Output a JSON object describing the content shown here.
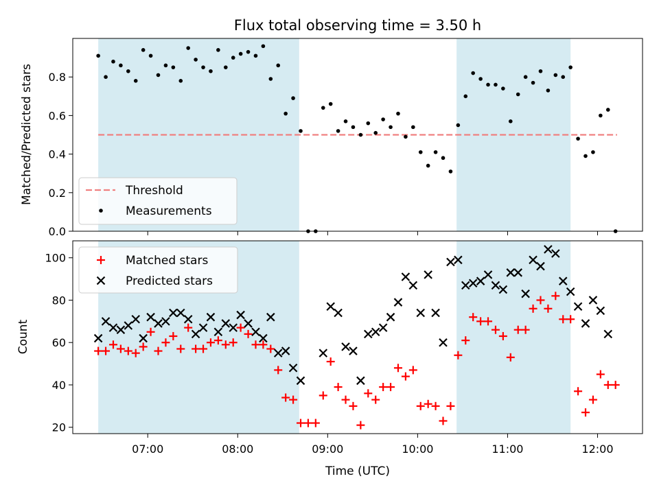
{
  "title": "Flux total observing time = 3.50 h",
  "colors": {
    "shade": "#add8e6",
    "threshold": "#f08080",
    "measurement": "#000000",
    "matched": "#ff0000",
    "predicted": "#000000"
  },
  "chart_data": [
    {
      "type": "scatter",
      "panel": "top",
      "ylabel": "Matched/Predicted stars",
      "ylim": [
        0,
        1.0
      ],
      "yticks": [
        0.0,
        0.2,
        0.4,
        0.6,
        0.8
      ],
      "ytick_labels": [
        "0.0",
        "0.2",
        "0.4",
        "0.6",
        "0.8"
      ],
      "xlim": [
        "06:10",
        "12:30"
      ],
      "shaded_spans": [
        [
          "06:27",
          "08:41"
        ],
        [
          "10:26",
          "11:42"
        ]
      ],
      "legend_position": "lower-left",
      "legend": [
        {
          "label": "Threshold",
          "kind": "dashed-line"
        },
        {
          "label": "Measurements",
          "kind": "dot"
        }
      ],
      "threshold": {
        "name": "Threshold",
        "value": 0.5,
        "x_range": [
          "06:27",
          "12:13"
        ]
      },
      "series": [
        {
          "name": "Measurements",
          "x": [
            "06:27",
            "06:32",
            "06:37",
            "06:42",
            "06:47",
            "06:52",
            "06:57",
            "07:02",
            "07:07",
            "07:12",
            "07:17",
            "07:22",
            "07:27",
            "07:32",
            "07:37",
            "07:42",
            "07:47",
            "07:52",
            "07:57",
            "08:02",
            "08:07",
            "08:12",
            "08:17",
            "08:22",
            "08:27",
            "08:32",
            "08:37",
            "08:42",
            "08:47",
            "08:52",
            "08:57",
            "09:02",
            "09:07",
            "09:12",
            "09:17",
            "09:22",
            "09:27",
            "09:32",
            "09:37",
            "09:42",
            "09:47",
            "09:52",
            "09:57",
            "10:02",
            "10:07",
            "10:12",
            "10:17",
            "10:22",
            "10:27",
            "10:32",
            "10:37",
            "10:42",
            "10:47",
            "10:52",
            "10:57",
            "11:02",
            "11:07",
            "11:12",
            "11:17",
            "11:22",
            "11:27",
            "11:32",
            "11:37",
            "11:42",
            "11:47",
            "11:52",
            "11:57",
            "12:02",
            "12:07",
            "12:12"
          ],
          "y": [
            0.91,
            0.8,
            0.88,
            0.86,
            0.83,
            0.78,
            0.94,
            0.91,
            0.81,
            0.86,
            0.85,
            0.78,
            0.95,
            0.89,
            0.85,
            0.83,
            0.94,
            0.85,
            0.9,
            0.92,
            0.93,
            0.91,
            0.96,
            0.79,
            0.86,
            0.61,
            0.69,
            0.52,
            0.0,
            0.0,
            0.64,
            0.66,
            0.52,
            0.57,
            0.54,
            0.5,
            0.56,
            0.51,
            0.58,
            0.54,
            0.61,
            0.49,
            0.54,
            0.41,
            0.34,
            0.41,
            0.38,
            0.31,
            0.55,
            0.7,
            0.82,
            0.79,
            0.76,
            0.76,
            0.74,
            0.57,
            0.71,
            0.8,
            0.77,
            0.83,
            0.73,
            0.81,
            0.8,
            0.85,
            0.48,
            0.39,
            0.41,
            0.6,
            0.63,
            0.0
          ]
        }
      ]
    },
    {
      "type": "scatter",
      "panel": "bottom",
      "xlabel": "Time (UTC)",
      "ylabel": "Count",
      "ylim": [
        17,
        108
      ],
      "yticks": [
        20,
        40,
        60,
        80,
        100
      ],
      "ytick_labels": [
        "20",
        "40",
        "60",
        "80",
        "100"
      ],
      "xlim": [
        "06:10",
        "12:30"
      ],
      "xticks": [
        "07:00",
        "08:00",
        "09:00",
        "10:00",
        "11:00",
        "12:00"
      ],
      "xtick_labels": [
        "07:00",
        "08:00",
        "09:00",
        "10:00",
        "11:00",
        "12:00"
      ],
      "shaded_spans": [
        [
          "06:27",
          "08:41"
        ],
        [
          "10:26",
          "11:42"
        ]
      ],
      "legend_position": "upper-left",
      "legend": [
        {
          "label": "Matched stars",
          "kind": "plus"
        },
        {
          "label": "Predicted stars",
          "kind": "cross"
        }
      ],
      "series": [
        {
          "name": "Matched stars",
          "x": [
            "06:27",
            "06:32",
            "06:37",
            "06:42",
            "06:47",
            "06:52",
            "06:57",
            "07:02",
            "07:07",
            "07:12",
            "07:17",
            "07:22",
            "07:27",
            "07:32",
            "07:37",
            "07:42",
            "07:47",
            "07:52",
            "07:57",
            "08:02",
            "08:07",
            "08:12",
            "08:17",
            "08:22",
            "08:27",
            "08:32",
            "08:37",
            "08:42",
            "08:47",
            "08:52",
            "08:57",
            "09:02",
            "09:07",
            "09:12",
            "09:17",
            "09:22",
            "09:27",
            "09:32",
            "09:37",
            "09:42",
            "09:47",
            "09:52",
            "09:57",
            "10:02",
            "10:07",
            "10:12",
            "10:17",
            "10:22",
            "10:27",
            "10:32",
            "10:37",
            "10:42",
            "10:47",
            "10:52",
            "10:57",
            "11:02",
            "11:07",
            "11:12",
            "11:17",
            "11:22",
            "11:27",
            "11:32",
            "11:37",
            "11:42",
            "11:47",
            "11:52",
            "11:57",
            "12:02",
            "12:07",
            "12:12"
          ],
          "y": [
            56,
            56,
            59,
            57,
            56,
            55,
            58,
            65,
            56,
            60,
            63,
            57,
            67,
            57,
            57,
            60,
            61,
            59,
            60,
            67,
            64,
            59,
            59,
            57,
            47,
            34,
            33,
            22,
            22,
            22,
            35,
            51,
            39,
            33,
            30,
            21,
            36,
            33,
            39,
            39,
            48,
            44,
            47,
            30,
            31,
            30,
            23,
            30,
            54,
            61,
            72,
            70,
            70,
            66,
            63,
            53,
            66,
            66,
            76,
            80,
            76,
            82,
            71,
            71,
            37,
            27,
            33,
            45,
            40,
            40
          ]
        },
        {
          "name": "Predicted stars",
          "x": [
            "06:27",
            "06:32",
            "06:37",
            "06:42",
            "06:47",
            "06:52",
            "06:57",
            "07:02",
            "07:07",
            "07:12",
            "07:17",
            "07:22",
            "07:27",
            "07:32",
            "07:37",
            "07:42",
            "07:47",
            "07:52",
            "07:57",
            "08:02",
            "08:07",
            "08:12",
            "08:17",
            "08:22",
            "08:27",
            "08:32",
            "08:37",
            "08:42",
            "08:57",
            "09:02",
            "09:07",
            "09:12",
            "09:17",
            "09:22",
            "09:27",
            "09:32",
            "09:37",
            "09:42",
            "09:47",
            "09:52",
            "09:57",
            "10:02",
            "10:07",
            "10:12",
            "10:17",
            "10:22",
            "10:27",
            "10:32",
            "10:37",
            "10:42",
            "10:47",
            "10:52",
            "10:57",
            "11:02",
            "11:07",
            "11:12",
            "11:17",
            "11:22",
            "11:27",
            "11:32",
            "11:37",
            "11:42",
            "11:47",
            "11:52",
            "11:57",
            "12:02",
            "12:07"
          ],
          "y": [
            62,
            70,
            67,
            66,
            68,
            71,
            62,
            72,
            69,
            70,
            74,
            74,
            71,
            64,
            67,
            72,
            65,
            69,
            67,
            73,
            69,
            65,
            62,
            72,
            55,
            56,
            48,
            42,
            55,
            77,
            74,
            58,
            56,
            42,
            64,
            65,
            67,
            72,
            79,
            91,
            87,
            74,
            92,
            74,
            60,
            98,
            99,
            87,
            88,
            89,
            92,
            87,
            85,
            93,
            93,
            83,
            99,
            96,
            104,
            102,
            89,
            84,
            77,
            69,
            80,
            75,
            64
          ]
        }
      ]
    }
  ]
}
